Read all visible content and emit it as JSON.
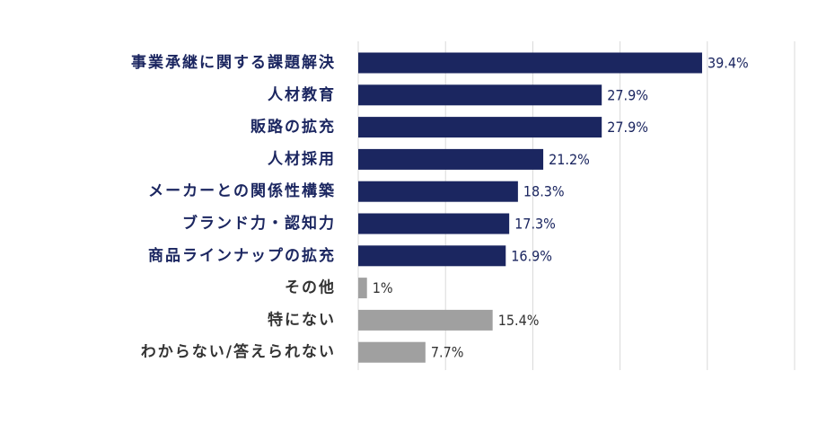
{
  "chart_data": {
    "type": "bar",
    "orientation": "horizontal",
    "title": "",
    "xlabel": "",
    "ylabel": "",
    "grid": true,
    "xlim": [
      0,
      50
    ],
    "categories": [
      "事業承継に関する課題解決",
      "人材教育",
      "販路の拡充",
      "人材採用",
      "メーカーとの関係性構築",
      "ブランド力・認知力",
      "商品ラインナップの拡充",
      "その他",
      "特にない",
      "わからない/答えられない"
    ],
    "values": [
      39.4,
      27.9,
      27.9,
      21.2,
      18.3,
      17.3,
      16.9,
      1,
      15.4,
      7.7
    ],
    "value_labels": [
      "39.4%",
      "27.9%",
      "27.9%",
      "21.2%",
      "18.3%",
      "17.3%",
      "16.9%",
      "1%",
      "15.4%",
      "7.7%"
    ],
    "highlight": [
      true,
      true,
      true,
      true,
      true,
      true,
      true,
      false,
      false,
      false
    ],
    "colors": {
      "highlight_bar": "#1b2660",
      "other_bar": "#a0a0a0",
      "highlight_text": "#1b2660",
      "other_text": "#333333",
      "grid": "#d9d9d9"
    }
  }
}
